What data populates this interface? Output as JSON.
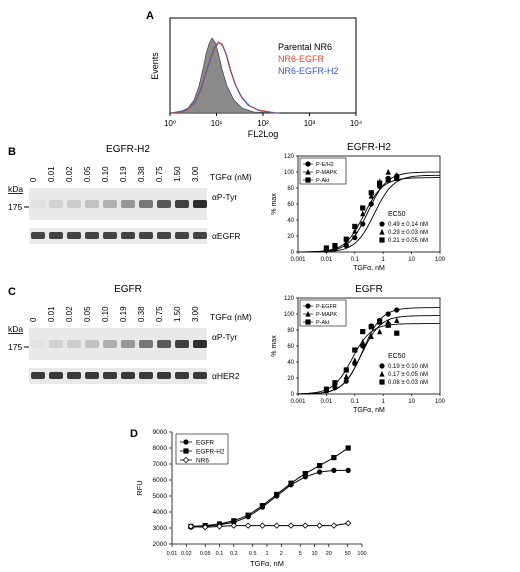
{
  "panels": {
    "A": {
      "label": "A",
      "ylabel": "Events",
      "xlabel": "FL2Log",
      "xticks": [
        "10⁰",
        "10¹",
        "10²",
        "10³",
        "10⁴"
      ],
      "legend": [
        {
          "text": "Parental NR6",
          "color": "#000000"
        },
        {
          "text": "NR6-EGFR",
          "color": "#e0452b"
        },
        {
          "text": "NR6-EGFR-H2",
          "color": "#3a57c9"
        }
      ]
    },
    "B": {
      "label": "B",
      "blot_title": "EGFR-H2",
      "doses": [
        "0",
        "0.01",
        "0.02",
        "0.05",
        "0.10",
        "0.19",
        "0.38",
        "0.75",
        "1.50",
        "3.00"
      ],
      "dose_label": "TGFα (nM)",
      "kda_label": "kDa",
      "mw_marker": "175",
      "band_top": "αP-Tyr",
      "band_bottom": "αEGFR",
      "chart_title": "EGFR-H2",
      "legend": [
        "P-E/H2",
        "P-MAPK",
        "P-Akt"
      ],
      "ylabel": "% max",
      "xlabel": "TGFα, nM",
      "xticks": [
        "0.001",
        "0.01",
        "0.1",
        "1",
        "10",
        "100"
      ],
      "yticks": [
        "0",
        "20",
        "40",
        "60",
        "80",
        "100",
        "120"
      ],
      "ec_title": "EC50",
      "ec_values": [
        "0.49 ± 0.14 nM",
        "0.29 ± 0.03 nM",
        "0.21 ± 0.05 nM"
      ]
    },
    "C": {
      "label": "C",
      "blot_title": "EGFR",
      "doses": [
        "0",
        "0.01",
        "0.02",
        "0.05",
        "0.10",
        "0.19",
        "0.38",
        "0.75",
        "1.50",
        "3.00"
      ],
      "dose_label": "TGFα (nM)",
      "kda_label": "kDa",
      "mw_marker": "175",
      "band_top": "αP-Tyr",
      "band_bottom": "αHER2",
      "chart_title": "EGFR",
      "legend": [
        "P-EGFR",
        "P-MAPK",
        "P-Akt"
      ],
      "ylabel": "% max",
      "xlabel": "TGFα, nM",
      "xticks": [
        "0.001",
        "0.01",
        "0.1",
        "1",
        "10",
        "100"
      ],
      "yticks": [
        "0",
        "20",
        "40",
        "60",
        "80",
        "100",
        "120"
      ],
      "ec_title": "EC50",
      "ec_values": [
        "0.19 ± 0.10 nM",
        "0.17 ± 0.05 nM",
        "0.08 ± 0.03 nM"
      ]
    },
    "D": {
      "label": "D",
      "ylabel": "RFU",
      "xlabel": "TGFα, nM",
      "legend": [
        "EGFR",
        "EGFR-H2",
        "NR6"
      ],
      "xticks": [
        "0.01",
        "0.02",
        "0.05",
        "0.1",
        "0.2",
        "0.5",
        "1",
        "2",
        "5",
        "10",
        "20",
        "50",
        "100"
      ],
      "yticks": [
        "2000",
        "3000",
        "4000",
        "5000",
        "6000",
        "7000",
        "8000",
        "9000"
      ]
    }
  },
  "chart_data": [
    {
      "id": "B",
      "type": "scatter",
      "xscale": "log",
      "xlim": [
        0.001,
        100
      ],
      "ylim": [
        0,
        120
      ],
      "series": [
        {
          "name": "P-E/H2",
          "marker": "circle",
          "x": [
            0.01,
            0.02,
            0.05,
            0.1,
            0.19,
            0.38,
            0.75,
            1.5,
            3.0
          ],
          "y": [
            2,
            4,
            8,
            18,
            35,
            60,
            82,
            92,
            95
          ],
          "ec50": 0.49,
          "top": 96
        },
        {
          "name": "P-MAPK",
          "marker": "triangle",
          "x": [
            0.01,
            0.02,
            0.05,
            0.1,
            0.19,
            0.38,
            0.75,
            1.5,
            3.0
          ],
          "y": [
            3,
            6,
            12,
            26,
            48,
            70,
            88,
            100,
            96
          ],
          "ec50": 0.29,
          "top": 100
        },
        {
          "name": "P-Akt",
          "marker": "square",
          "x": [
            0.01,
            0.02,
            0.05,
            0.1,
            0.19,
            0.38,
            0.75,
            1.5,
            3.0
          ],
          "y": [
            5,
            8,
            16,
            32,
            55,
            74,
            86,
            90,
            92
          ],
          "ec50": 0.21,
          "top": 93
        }
      ]
    },
    {
      "id": "C",
      "type": "scatter",
      "xscale": "log",
      "xlim": [
        0.001,
        100
      ],
      "ylim": [
        0,
        120
      ],
      "series": [
        {
          "name": "P-EGFR",
          "marker": "circle",
          "x": [
            0.01,
            0.02,
            0.05,
            0.1,
            0.19,
            0.38,
            0.75,
            1.5,
            3.0
          ],
          "y": [
            4,
            8,
            16,
            38,
            60,
            85,
            92,
            100,
            105
          ],
          "ec50": 0.19,
          "top": 108
        },
        {
          "name": "P-MAPK",
          "marker": "triangle",
          "x": [
            0.01,
            0.02,
            0.05,
            0.1,
            0.19,
            0.38,
            0.75,
            1.5,
            3.0
          ],
          "y": [
            5,
            10,
            22,
            42,
            65,
            72,
            78,
            90,
            92
          ],
          "ec50": 0.17,
          "top": 98
        },
        {
          "name": "P-Akt",
          "marker": "square",
          "x": [
            0.01,
            0.02,
            0.05,
            0.1,
            0.19,
            0.38,
            0.75,
            1.5,
            3.0
          ],
          "y": [
            6,
            14,
            30,
            55,
            78,
            84,
            90,
            86,
            76
          ],
          "ec50": 0.08,
          "top": 88
        }
      ]
    },
    {
      "id": "D",
      "type": "line",
      "xscale": "log",
      "xlim": [
        0.01,
        100
      ],
      "ylim": [
        2000,
        9000
      ],
      "series": [
        {
          "name": "EGFR",
          "marker": "circle",
          "x": [
            0.025,
            0.05,
            0.1,
            0.2,
            0.4,
            0.8,
            1.6,
            3.2,
            6.4,
            12.8,
            25.6,
            51.2
          ],
          "y": [
            3050,
            3100,
            3200,
            3350,
            3700,
            4300,
            5000,
            5700,
            6200,
            6500,
            6600,
            6600
          ]
        },
        {
          "name": "EGFR-H2",
          "marker": "square",
          "x": [
            0.025,
            0.05,
            0.1,
            0.2,
            0.4,
            0.8,
            1.6,
            3.2,
            6.4,
            12.8,
            25.6,
            51.2
          ],
          "y": [
            3100,
            3150,
            3250,
            3450,
            3800,
            4400,
            5100,
            5800,
            6400,
            6900,
            7400,
            8000
          ]
        },
        {
          "name": "NR6",
          "marker": "diamond-open",
          "x": [
            0.025,
            0.05,
            0.1,
            0.2,
            0.4,
            0.8,
            1.6,
            3.2,
            6.4,
            12.8,
            25.6,
            51.2
          ],
          "y": [
            3100,
            3050,
            3100,
            3150,
            3150,
            3150,
            3150,
            3150,
            3150,
            3150,
            3150,
            3300
          ]
        }
      ]
    }
  ]
}
